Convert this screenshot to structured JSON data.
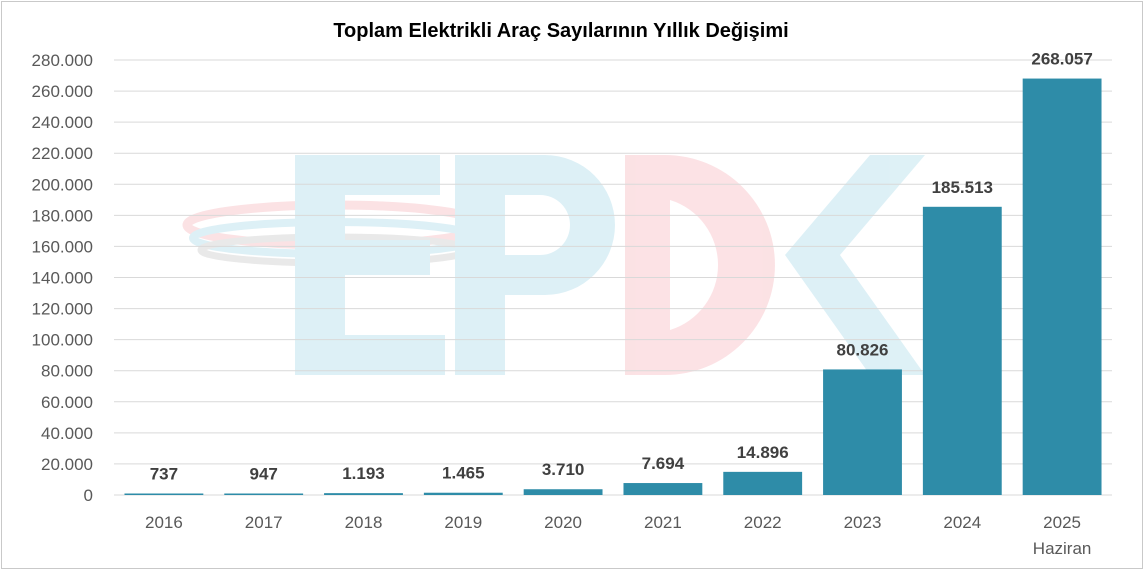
{
  "chart_data": {
    "type": "bar",
    "title": "Toplam Elektrikli Araç Sayılarının Yıllık Değişimi",
    "categories": [
      "2016",
      "2017",
      "2018",
      "2019",
      "2020",
      "2021",
      "2022",
      "2023",
      "2024",
      "2025"
    ],
    "category_sublabels": [
      "",
      "",
      "",
      "",
      "",
      "",
      "",
      "",
      "",
      "Haziran"
    ],
    "values": [
      737,
      947,
      1193,
      1465,
      3710,
      7694,
      14896,
      80826,
      185513,
      268057
    ],
    "data_labels": [
      "737",
      "947",
      "1.193",
      "1.465",
      "3.710",
      "7.694",
      "14.896",
      "80.826",
      "185.513",
      "268.057"
    ],
    "ylim": [
      0,
      280000
    ],
    "yticks": [
      "0",
      "20.000",
      "40.000",
      "60.000",
      "80.000",
      "100.000",
      "120.000",
      "140.000",
      "160.000",
      "180.000",
      "200.000",
      "220.000",
      "240.000",
      "260.000",
      "280.000"
    ],
    "xlabel": "",
    "ylabel": "",
    "grid": true,
    "legend": "none",
    "bar_color": "#2e8ca8",
    "gridline_color": "#d9d9d9"
  },
  "watermark": {
    "text": "EPDK",
    "colors": [
      "#d8eef5",
      "#fbdde0"
    ]
  }
}
